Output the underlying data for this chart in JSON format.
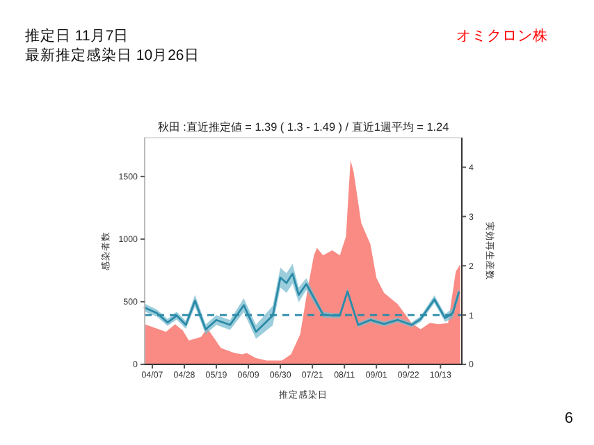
{
  "chart_data": {
    "type": "area",
    "title": "秋田 :直近推定値 = 1.39 ( 1.3 - 1.49 ) / 直近1週平均 = 1.24",
    "xlabel": "推定感染日",
    "ylabel": "感染者数",
    "y2label": "実効再生産数",
    "annotations": [
      "推定日  11月7日",
      "最新推定感染日  10月26日",
      "オミクロン株",
      "6"
    ],
    "xlim": [
      "--04-02",
      "--10-27"
    ],
    "xticks": [
      {
        "value": "--04-07",
        "label": "04/07"
      },
      {
        "value": "--04-28",
        "label": "04/28"
      },
      {
        "value": "--05-19",
        "label": "05/19"
      },
      {
        "value": "--06-09",
        "label": "06/09"
      },
      {
        "value": "--06-30",
        "label": "06/30"
      },
      {
        "value": "--07-21",
        "label": "07/21"
      },
      {
        "value": "--08-11",
        "label": "08/11"
      },
      {
        "value": "--09-01",
        "label": "09/01"
      },
      {
        "value": "--09-22",
        "label": "09/22"
      },
      {
        "value": "--10-13",
        "label": "10/13"
      }
    ],
    "ylim": [
      0,
      1810
    ],
    "yticks": [
      0,
      500,
      1000,
      1500
    ],
    "y2lim": [
      0,
      4.6
    ],
    "y2ticks": [
      0,
      1,
      2,
      3,
      4
    ],
    "ref_lines": [
      {
        "axis": "y2",
        "value": 1,
        "color": "#2a8aa8",
        "line_style": "dashed"
      }
    ],
    "series": [
      {
        "color": "#f98b84",
        "x": [
          "--04-02",
          "--04-16",
          "--04-22",
          "--04-27",
          "--05-01",
          "--05-09",
          "--05-13",
          "--05-22",
          "--05-31",
          "--06-05",
          "--06-08",
          "--06-14",
          "--06-21",
          "--07-01",
          "--07-07",
          "--07-13",
          "--07-18",
          "--07-22",
          "--07-24",
          "--07-28",
          "--08-03",
          "--08-08",
          "--08-12",
          "--08-15",
          "--08-17",
          "--08-22",
          "--08-28",
          "--09-01",
          "--09-06",
          "--09-15",
          "--09-24",
          "--09-30",
          "--10-06",
          "--10-12",
          "--10-18",
          "--10-23",
          "--10-26"
        ],
        "values": [
          320,
          260,
          320,
          270,
          190,
          220,
          290,
          130,
          90,
          80,
          90,
          50,
          30,
          30,
          80,
          240,
          610,
          870,
          930,
          870,
          910,
          870,
          1020,
          1630,
          1540,
          1130,
          960,
          690,
          570,
          480,
          330,
          280,
          330,
          320,
          330,
          740,
          800
        ]
      },
      {
        "type": "line",
        "axis": "y2",
        "color": "#2a8aa8",
        "x": [
          "--04-02",
          "--04-10",
          "--04-17",
          "--04-23",
          "--04-29",
          "--05-05",
          "--05-12",
          "--05-19",
          "--05-28",
          "--06-06",
          "--06-14",
          "--06-25",
          "--06-30",
          "--07-04",
          "--07-08",
          "--07-12",
          "--07-17",
          "--07-28",
          "--08-03",
          "--08-08",
          "--08-13",
          "--08-20",
          "--08-28",
          "--09-06",
          "--09-15",
          "--09-24",
          "--09-30",
          "--10-09",
          "--10-16",
          "--10-21",
          "--10-25"
        ],
        "values": [
          1.15,
          1.04,
          0.85,
          0.99,
          0.8,
          1.29,
          0.71,
          0.9,
          0.8,
          1.2,
          0.66,
          0.99,
          1.76,
          1.65,
          1.84,
          1.41,
          1.63,
          1.01,
          0.99,
          0.99,
          1.48,
          0.8,
          0.9,
          0.82,
          0.9,
          0.8,
          0.92,
          1.32,
          0.94,
          1.04,
          1.46
        ],
        "lower": [
          1.07,
          0.97,
          0.78,
          0.91,
          0.72,
          1.17,
          0.61,
          0.8,
          0.7,
          1.06,
          0.52,
          0.79,
          1.56,
          1.45,
          1.64,
          1.26,
          1.51,
          0.95,
          0.94,
          0.94,
          1.41,
          0.75,
          0.85,
          0.77,
          0.85,
          0.75,
          0.86,
          1.24,
          0.86,
          0.94,
          1.36
        ],
        "upper": [
          1.23,
          1.11,
          0.92,
          1.07,
          0.88,
          1.41,
          0.81,
          1.0,
          0.9,
          1.34,
          0.8,
          1.19,
          1.96,
          1.85,
          2.04,
          1.56,
          1.75,
          1.07,
          1.04,
          1.04,
          1.55,
          0.85,
          0.95,
          0.87,
          0.95,
          0.85,
          0.98,
          1.4,
          1.02,
          1.14,
          1.56
        ]
      }
    ]
  }
}
